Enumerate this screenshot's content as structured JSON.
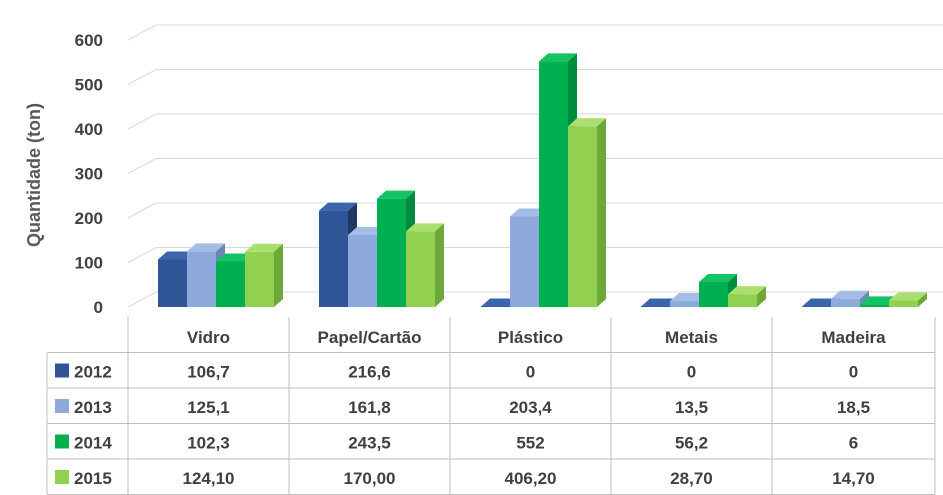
{
  "chart_data": {
    "type": "bar",
    "style": "3d-clustered-column-with-data-table",
    "categories": [
      "Vidro",
      "Papel/Cartão",
      "Plástico",
      "Metais",
      "Madeira"
    ],
    "series": [
      {
        "name": "2012",
        "values": [
          106.7,
          216.6,
          0,
          0,
          0
        ],
        "labels": [
          "106,7",
          "216,6",
          "0",
          "0",
          "0"
        ]
      },
      {
        "name": "2013",
        "values": [
          125.1,
          161.8,
          203.4,
          13.5,
          18.5
        ],
        "labels": [
          "125,1",
          "161,8",
          "203,4",
          "13,5",
          "18,5"
        ]
      },
      {
        "name": "2014",
        "values": [
          102.3,
          243.5,
          552,
          56.2,
          6
        ],
        "labels": [
          "102,3",
          "243,5",
          "552",
          "56,2",
          "6"
        ]
      },
      {
        "name": "2015",
        "values": [
          124.1,
          170.0,
          406.2,
          28.7,
          14.7
        ],
        "labels": [
          "124,10",
          "170,00",
          "406,20",
          "28,70",
          "14,70"
        ]
      }
    ],
    "ylabel": "Quantidade (ton)",
    "ylim": [
      0,
      600
    ],
    "yticks": [
      0,
      100,
      200,
      300,
      400,
      500,
      600
    ],
    "grid": true,
    "legend": "data-table-rows"
  },
  "colors": {
    "series": [
      "#2F5597",
      "#8EA9DB",
      "#00B050",
      "#92D050"
    ],
    "series_side": [
      "#1F3864",
      "#6B86B8",
      "#008A3E",
      "#6FA83A"
    ],
    "series_top": [
      "#3A66AE",
      "#A5BDE6",
      "#14C463",
      "#A9DF6E"
    ],
    "grid": "#D9D9D9",
    "table_border": "#BFBFBF",
    "text": "#404040"
  }
}
